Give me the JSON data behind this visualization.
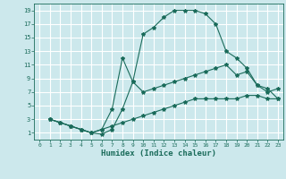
{
  "xlabel": "Humidex (Indice chaleur)",
  "line_color": "#1a6b5a",
  "bg_color": "#cce8ec",
  "grid_color": "#ffffff",
  "xlim": [
    -0.5,
    23.5
  ],
  "ylim": [
    0,
    20
  ],
  "xticks": [
    0,
    1,
    2,
    3,
    4,
    5,
    6,
    7,
    8,
    9,
    10,
    11,
    12,
    13,
    14,
    15,
    16,
    17,
    18,
    19,
    20,
    21,
    22,
    23
  ],
  "yticks": [
    1,
    3,
    5,
    7,
    9,
    11,
    13,
    15,
    17,
    19
  ],
  "line1_x": [
    1,
    2,
    3,
    4,
    5,
    6,
    7,
    8,
    9,
    10,
    11,
    12,
    13,
    14,
    15,
    16,
    17,
    18,
    19,
    20,
    21,
    22,
    23
  ],
  "line1_y": [
    3,
    2.5,
    2,
    1.5,
    1,
    0.8,
    1.5,
    4.5,
    8.5,
    15.5,
    16.5,
    18,
    19,
    19,
    19,
    18.5,
    17,
    13,
    12,
    10.5,
    8,
    7.5,
    6
  ],
  "line2_x": [
    1,
    2,
    3,
    4,
    5,
    6,
    7,
    8,
    9,
    10,
    11,
    12,
    13,
    14,
    15,
    16,
    17,
    18,
    19,
    20,
    21,
    22,
    23
  ],
  "line2_y": [
    3,
    2.5,
    2,
    1.5,
    1,
    1.5,
    4.5,
    12,
    8.5,
    7,
    7.5,
    8,
    8.5,
    9,
    9.5,
    10,
    10.5,
    11,
    9.5,
    10,
    8,
    7,
    7.5
  ],
  "line3_x": [
    1,
    2,
    3,
    4,
    5,
    6,
    7,
    8,
    9,
    10,
    11,
    12,
    13,
    14,
    15,
    16,
    17,
    18,
    19,
    20,
    21,
    22,
    23
  ],
  "line3_y": [
    3,
    2.5,
    2,
    1.5,
    1,
    1.5,
    2,
    2.5,
    3,
    3.5,
    4,
    4.5,
    5,
    5.5,
    6,
    6,
    6,
    6,
    6,
    6.5,
    6.5,
    6,
    6
  ],
  "tick_fontsize": 5.5,
  "xlabel_fontsize": 6.5
}
